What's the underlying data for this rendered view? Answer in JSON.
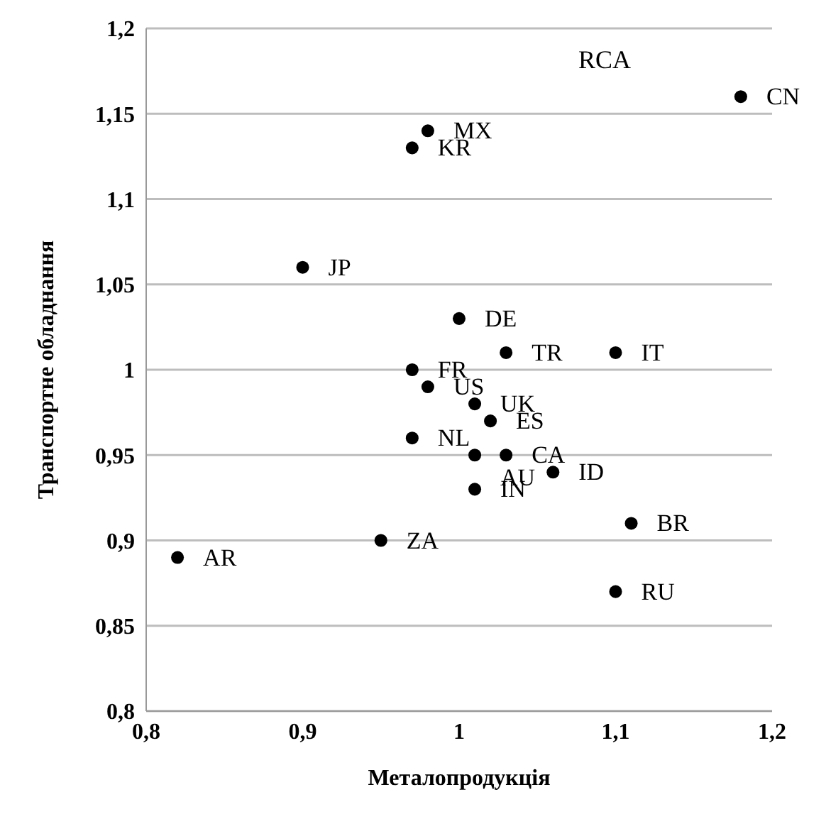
{
  "chart_data": {
    "type": "scatter",
    "title": "RCA",
    "xlabel": "Металопродукція",
    "ylabel": "Транспортне обладнання",
    "x": [
      1.18,
      0.98,
      0.97,
      0.9,
      1.0,
      1.03,
      1.1,
      0.97,
      0.98,
      1.01,
      1.02,
      0.97,
      1.01,
      1.03,
      1.06,
      1.01,
      1.11,
      0.95,
      0.82,
      1.1
    ],
    "series": [
      {
        "color": "#000000",
        "values": [
          1.16,
          1.14,
          1.13,
          1.06,
          1.03,
          1.01,
          1.01,
          1.0,
          0.99,
          0.98,
          0.97,
          0.96,
          0.95,
          0.95,
          0.94,
          0.93,
          0.91,
          0.9,
          0.89,
          0.87
        ]
      }
    ],
    "annotations": [
      {
        "text": "CN",
        "x": 1.18,
        "y": 1.16
      },
      {
        "text": "MX",
        "x": 0.98,
        "y": 1.14
      },
      {
        "text": "KR",
        "x": 0.97,
        "y": 1.13
      },
      {
        "text": "JP",
        "x": 0.9,
        "y": 1.06
      },
      {
        "text": "DE",
        "x": 1.0,
        "y": 1.03
      },
      {
        "text": "TR",
        "x": 1.03,
        "y": 1.01
      },
      {
        "text": "IT",
        "x": 1.1,
        "y": 1.01
      },
      {
        "text": "FR",
        "x": 0.97,
        "y": 1.0
      },
      {
        "text": "US",
        "x": 0.98,
        "y": 0.99
      },
      {
        "text": "UK",
        "x": 1.01,
        "y": 0.98
      },
      {
        "text": "ES",
        "x": 1.02,
        "y": 0.97
      },
      {
        "text": "NL",
        "x": 0.97,
        "y": 0.96
      },
      {
        "text": "AU",
        "x": 1.01,
        "y": 0.95
      },
      {
        "text": "CA",
        "x": 1.03,
        "y": 0.95
      },
      {
        "text": "ID",
        "x": 1.06,
        "y": 0.94
      },
      {
        "text": "IN",
        "x": 1.01,
        "y": 0.93
      },
      {
        "text": "BR",
        "x": 1.11,
        "y": 0.91
      },
      {
        "text": "ZA",
        "x": 0.95,
        "y": 0.9
      },
      {
        "text": "AR",
        "x": 0.82,
        "y": 0.89
      },
      {
        "text": "RU",
        "x": 1.1,
        "y": 0.87
      }
    ],
    "xlim": [
      0.8,
      1.2
    ],
    "xticks": [
      {
        "value": 0.8,
        "label": "0,8"
      },
      {
        "value": 0.9,
        "label": "0,9"
      },
      {
        "value": 1,
        "label": "1"
      },
      {
        "value": 1.1,
        "label": "1,1"
      },
      {
        "value": 1.2,
        "label": "1,2"
      }
    ],
    "ylim": [
      0.8,
      1.2
    ],
    "yticks": [
      {
        "value": 0.8,
        "label": "0,8"
      },
      {
        "value": 0.85,
        "label": "0,85"
      },
      {
        "value": 0.9,
        "label": "0,9"
      },
      {
        "value": 0.95,
        "label": "0,95"
      },
      {
        "value": 1,
        "label": "1"
      },
      {
        "value": 1.05,
        "label": "1,05"
      },
      {
        "value": 1.1,
        "label": "1,1"
      },
      {
        "value": 1.15,
        "label": "1,15"
      },
      {
        "value": 1.2,
        "label": "1,2"
      }
    ],
    "grid": "y",
    "marker": "circle",
    "legend": false
  }
}
